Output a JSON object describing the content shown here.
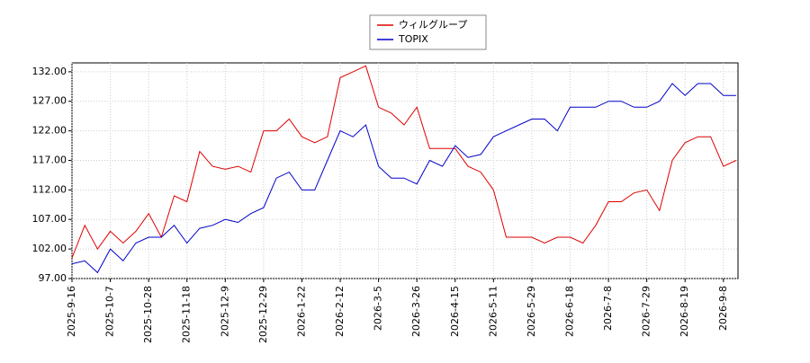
{
  "chart_data": {
    "type": "line",
    "categories": [
      "2025-9-16",
      null,
      null,
      "2025-10-7",
      null,
      null,
      "2025-10-28",
      null,
      null,
      "2025-11-18",
      null,
      null,
      "2025-12-9",
      null,
      null,
      "2025-12-29",
      null,
      null,
      "2026-1-22",
      null,
      null,
      "2026-2-12",
      null,
      null,
      "2026-3-5",
      null,
      null,
      "2026-3-26",
      null,
      null,
      "2026-4-15",
      null,
      null,
      "2026-5-11",
      null,
      null,
      "2026-5-29",
      null,
      null,
      "2026-6-18",
      null,
      null,
      "2026-7-8",
      null,
      null,
      "2026-7-29",
      null,
      null,
      "2026-8-19",
      null,
      null,
      "2026-9-8",
      null
    ],
    "series": [
      {
        "name": "ウィルグループ",
        "color": "#dd0000",
        "values": [
          100.5,
          106,
          102,
          105,
          103,
          105,
          108,
          104,
          111,
          110,
          118.5,
          116,
          115.5,
          116,
          115,
          122,
          122,
          124,
          121,
          120,
          121,
          131,
          132,
          133,
          126,
          125,
          123,
          126,
          119,
          119,
          119,
          116,
          115,
          112,
          104,
          104,
          104,
          103,
          104,
          104,
          103,
          106,
          110,
          110,
          111.5,
          112,
          108.5,
          117,
          120,
          121,
          121,
          116,
          117
        ]
      },
      {
        "name": "TOPIX",
        "color": "#0000cc",
        "values": [
          99.5,
          100,
          98,
          102,
          100,
          103,
          104,
          104,
          106,
          103,
          105.5,
          106,
          107,
          106.5,
          108,
          109,
          114,
          115,
          112,
          112,
          117,
          122,
          121,
          123,
          116,
          114,
          114,
          113,
          117,
          116,
          119.5,
          117.5,
          118,
          121,
          122,
          123,
          124,
          124,
          122,
          126,
          126,
          126,
          127,
          127,
          126,
          126,
          127,
          130,
          128,
          130,
          130,
          128,
          128
        ]
      }
    ],
    "ylim": [
      97,
      133.5
    ],
    "yticks": [
      {
        "value": 97,
        "label": "97.00"
      },
      {
        "value": 102,
        "label": "102.00"
      },
      {
        "value": 107,
        "label": "107.00"
      },
      {
        "value": 112,
        "label": "112.00"
      },
      {
        "value": 117,
        "label": "117.00"
      },
      {
        "value": 122,
        "label": "122.00"
      },
      {
        "value": 127,
        "label": "127.00"
      },
      {
        "value": 132,
        "label": "132.00"
      }
    ],
    "grid": true,
    "legend": "top"
  }
}
